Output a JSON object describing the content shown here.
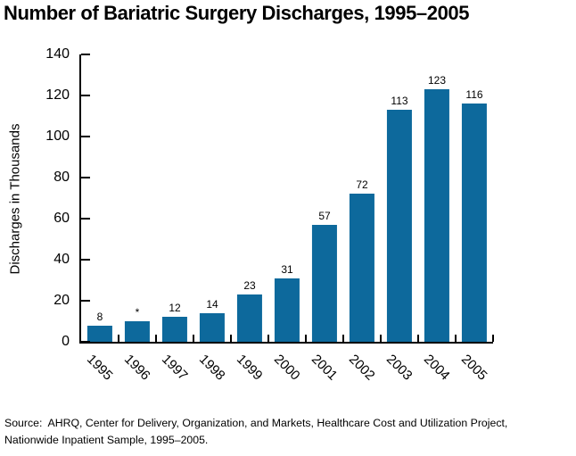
{
  "title": "Number of Bariatric Surgery Discharges, 1995–2005",
  "source": "Source:  AHRQ, Center for Delivery, Organization, and Markets, Healthcare Cost and Utilization Project,\nNationwide Inpatient Sample, 1995–2005.",
  "chart_data": {
    "type": "bar",
    "title": "Number of Bariatric Surgery Discharges, 1995–2005",
    "categories": [
      "1995",
      "1996",
      "1997",
      "1998",
      "1999",
      "2000",
      "2001",
      "2002",
      "2003",
      "2004",
      "2005"
    ],
    "values": [
      8,
      10,
      12,
      14,
      23,
      31,
      57,
      72,
      113,
      123,
      116
    ],
    "bar_labels": [
      "8",
      "*",
      "12",
      "14",
      "23",
      "31",
      "57",
      "72",
      "113",
      "123",
      "116"
    ],
    "xlabel": "",
    "ylabel": "Discharges in Thousands",
    "ylim": [
      0,
      140
    ],
    "yticks": [
      0,
      20,
      40,
      60,
      80,
      100,
      120,
      140
    ],
    "bar_color": "#0d699c",
    "grid": false,
    "legend": false
  }
}
